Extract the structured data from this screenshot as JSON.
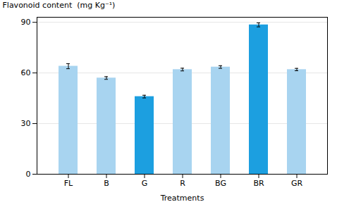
{
  "chart_data": {
    "type": "bar",
    "categories": [
      "FL",
      "B",
      "G",
      "R",
      "BG",
      "BR",
      "GR"
    ],
    "values": [
      64.0,
      57.0,
      46.0,
      62.0,
      63.5,
      88.5,
      62.0
    ],
    "errors": [
      1.5,
      0.8,
      0.8,
      0.8,
      0.8,
      1.2,
      0.7
    ],
    "colors": [
      "#A8D4F0",
      "#A8D4F0",
      "#1C9FE0",
      "#A8D4F0",
      "#A8D4F0",
      "#1C9FE0",
      "#A8D4F0"
    ],
    "xlabel": "Treatments",
    "ylabel": "Flavonoid content  (mg Kg⁻¹)",
    "ylim": [
      0,
      93
    ],
    "yticks": [
      0,
      30,
      60,
      90
    ],
    "grid": true
  }
}
